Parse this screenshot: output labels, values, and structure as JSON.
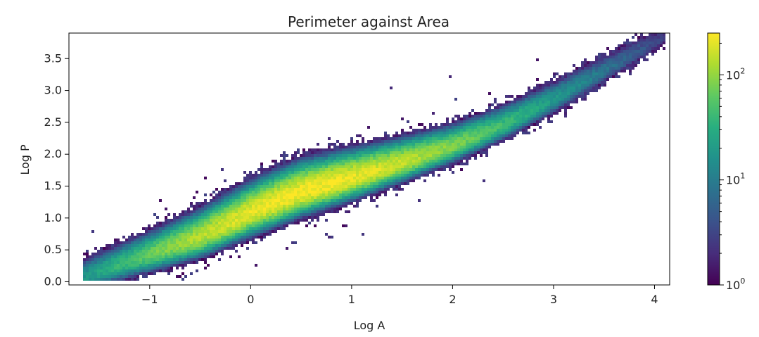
{
  "chart_data": {
    "type": "heatmap",
    "subtype": "2d-histogram",
    "title": "Perimeter against Area",
    "xlabel": "Log A",
    "ylabel": "Log P",
    "xlim": [
      -1.8,
      4.15
    ],
    "ylim": [
      -0.05,
      3.9
    ],
    "xticks": [
      -1,
      0,
      1,
      2,
      3,
      4
    ],
    "xtick_labels": [
      "−1",
      "0",
      "1",
      "2",
      "3",
      "4"
    ],
    "yticks": [
      0.0,
      0.5,
      1.0,
      1.5,
      2.0,
      2.5,
      3.0,
      3.5
    ],
    "ytick_labels": [
      "0.0",
      "0.5",
      "1.0",
      "1.5",
      "2.0",
      "2.5",
      "3.0",
      "3.5"
    ],
    "colorbar": {
      "scale": "log",
      "colormap": "viridis",
      "range": [
        1,
        250
      ],
      "ticks": [
        1,
        10,
        100
      ],
      "tick_labels": [
        {
          "base": "10",
          "exp": "0"
        },
        {
          "base": "10",
          "exp": "1"
        },
        {
          "base": "10",
          "exp": "2"
        }
      ]
    },
    "density_ridge": {
      "x": [
        -1.5,
        -1.0,
        -0.5,
        0.0,
        0.5,
        1.0,
        1.5,
        2.0,
        2.5,
        3.0,
        3.5,
        4.0
      ],
      "y": [
        0.15,
        0.42,
        0.7,
        1.08,
        1.4,
        1.62,
        1.86,
        2.12,
        2.45,
        2.85,
        3.3,
        3.75
      ]
    },
    "peak_count_near": {
      "x": 0.5,
      "y": 1.45,
      "count": 250
    },
    "grid": false
  }
}
